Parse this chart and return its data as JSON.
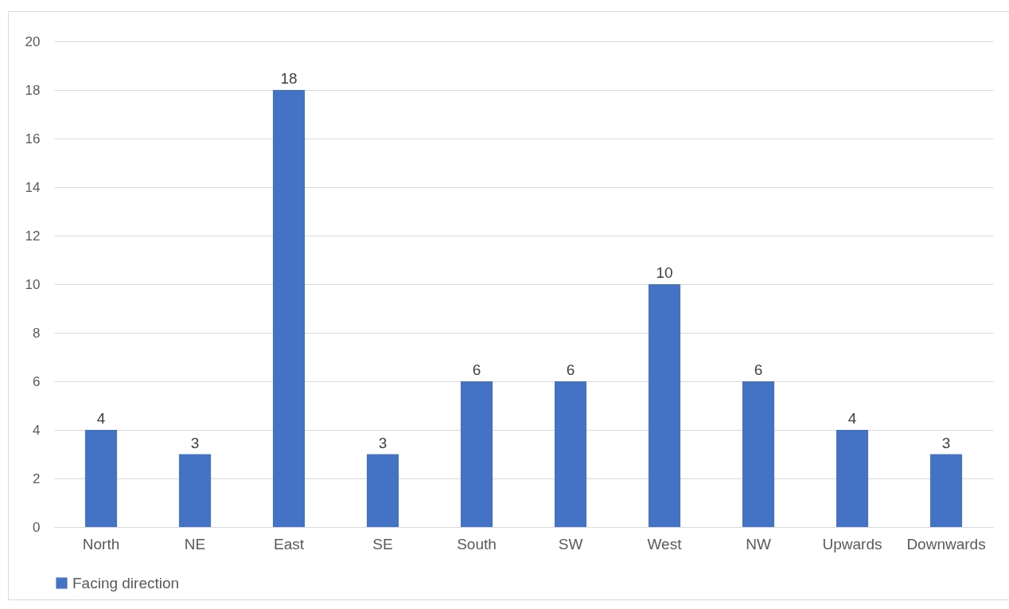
{
  "chart_data": {
    "type": "bar",
    "categories": [
      "North",
      "NE",
      "East",
      "SE",
      "South",
      "SW",
      "West",
      "NW",
      "Upwards",
      "Downwards"
    ],
    "series": [
      {
        "name": "Facing direction",
        "color": "#4472c4",
        "values": [
          4,
          3,
          18,
          3,
          6,
          6,
          10,
          6,
          4,
          3
        ]
      }
    ],
    "ylim": [
      0,
      20
    ],
    "yticks": [
      0,
      2,
      4,
      6,
      8,
      10,
      12,
      14,
      16,
      18,
      20
    ],
    "grid": "y",
    "legend": "bottom",
    "data_labels": true
  }
}
